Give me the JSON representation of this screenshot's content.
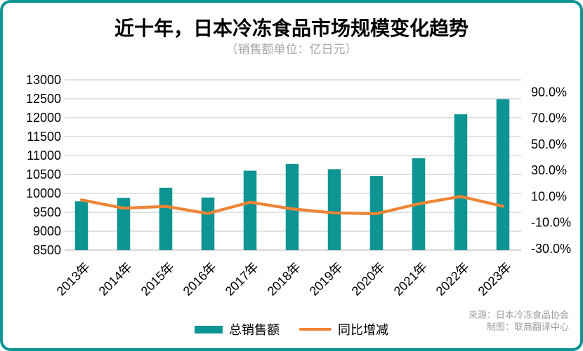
{
  "header": {
    "title": "近十年，日本冷冻食品市场规模变化趋势",
    "subtitle": "（销售额单位：亿日元）"
  },
  "chart_data": {
    "type": "combo-bar-line",
    "title": "近十年，日本冷冻食品市场规模变化趋势",
    "subtitle": "（销售额单位：亿日元）",
    "unit_note": "销售额单位：亿日元",
    "categories": [
      "2013年",
      "2014年",
      "2015年",
      "2016年",
      "2017年",
      "2018年",
      "2019年",
      "2020年",
      "2021年",
      "2022年",
      "2023年"
    ],
    "series": [
      {
        "name": "总销售额",
        "type": "bar",
        "y_axis": "left",
        "color": "#0d9493",
        "values": [
          9790,
          9880,
          10150,
          9890,
          10600,
          10780,
          10640,
          10460,
          10930,
          12090,
          12490
        ]
      },
      {
        "name": "同比增减",
        "type": "line",
        "y_axis": "right",
        "color": "#ee8435",
        "unit": "%",
        "values": [
          7.4,
          1.0,
          2.4,
          -3.0,
          5.6,
          0.5,
          -2.6,
          -3.2,
          4.4,
          10.0,
          2.5
        ]
      }
    ],
    "left_axis": {
      "min": 8500,
      "max": 13000,
      "step": 500,
      "tick_labels": [
        "13000",
        "12500",
        "12000",
        "11500",
        "11000",
        "10500",
        "10000",
        "9500",
        "9000",
        "8500"
      ]
    },
    "right_axis": {
      "min": -30,
      "max": 90,
      "step": 20,
      "tick_labels": [
        "90.0%",
        "70.0%",
        "50.0%",
        "30.0%",
        "10.0%",
        "-10.0%",
        "-30.0%"
      ]
    },
    "grid": true,
    "gridline_color": "#d9d9d9",
    "legend_position": "bottom"
  },
  "legend": {
    "items": [
      {
        "label": "总销售额",
        "type": "bar",
        "color": "#0d9493"
      },
      {
        "label": "同比增减",
        "type": "line",
        "color": "#ee8435"
      }
    ]
  },
  "footer": {
    "source": "来源：日本冷冻食品协会",
    "credit": "制图：联商翻译中心"
  },
  "colors": {
    "accent_teal": "#0d9493",
    "accent_orange": "#ee8435",
    "border": "#0d9493",
    "gridline": "#d9d9d9",
    "subtitle_gray": "#a6a6a6",
    "footer_gray": "#9a9fa0"
  }
}
